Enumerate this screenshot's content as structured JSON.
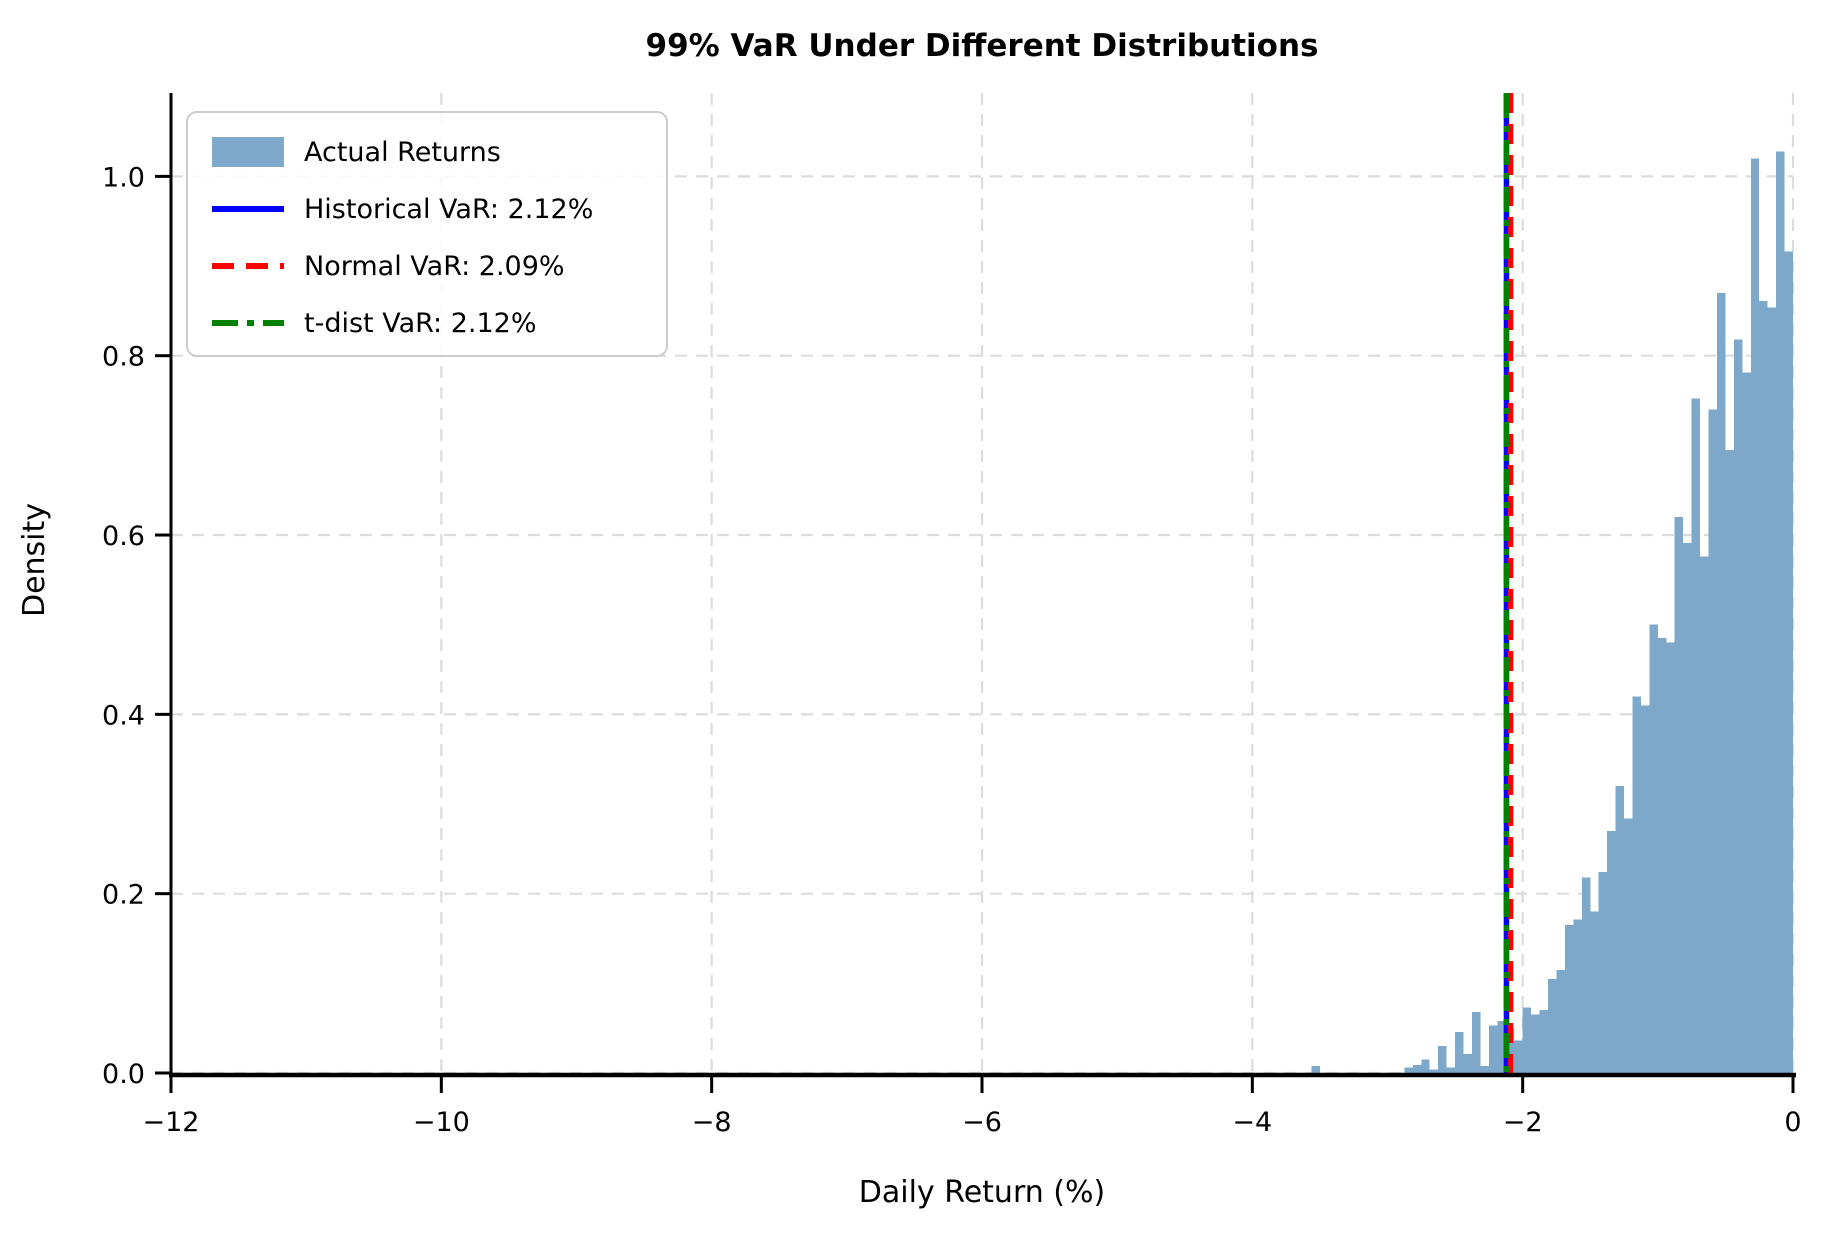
{
  "title": "99% VaR Under Different Distributions",
  "colors": {
    "histogram_fill": "#7da8ca",
    "historical_var": "#0000ff",
    "normal_var": "#ff0000",
    "tdist_var": "#008000",
    "grid": "#dcdcdc",
    "spine": "#000000",
    "legend_border": "#cccccc"
  },
  "legend": {
    "position": "upper left",
    "items": [
      {
        "label": "Actual Returns",
        "swatch": "patch",
        "color": "#7da8ca"
      },
      {
        "label": "Historical VaR: 2.12%",
        "swatch": "solid",
        "color": "#0000ff"
      },
      {
        "label": "Normal VaR: 2.09%",
        "swatch": "dashed",
        "color": "#ff0000"
      },
      {
        "label": "t-dist VaR: 2.12%",
        "swatch": "dashdot",
        "color": "#008000"
      }
    ]
  },
  "chart_data": {
    "type": "bar",
    "subtype": "histogram-density",
    "title": "99% VaR Under Different Distributions",
    "xlabel": "Daily Return (%)",
    "ylabel": "Density",
    "xlim": [
      -12,
      0
    ],
    "ylim": [
      0,
      1.093
    ],
    "grid": true,
    "x_tick_values": [
      -12,
      -10,
      -8,
      -6,
      -4,
      -2,
      0
    ],
    "x_tick_labels": [
      "−12",
      "−10",
      "−8",
      "−6",
      "−4",
      "−2",
      "0"
    ],
    "y_tick_values": [
      0.0,
      0.2,
      0.4,
      0.6,
      0.8,
      1.0
    ],
    "y_tick_labels": [
      "0.0",
      "0.2",
      "0.4",
      "0.6",
      "0.8",
      "1.0"
    ],
    "series_name": "Actual Returns",
    "bin_width": 0.0625,
    "bin_centers": [
      -3.53125,
      -3.46875,
      -3.40625,
      -3.34375,
      -3.28125,
      -3.21875,
      -3.15625,
      -3.09375,
      -3.03125,
      -2.96875,
      -2.90625,
      -2.84375,
      -2.78125,
      -2.71875,
      -2.65625,
      -2.59375,
      -2.53125,
      -2.46875,
      -2.40625,
      -2.34375,
      -2.28125,
      -2.21875,
      -2.15625,
      -2.09375,
      -2.03125,
      -1.96875,
      -1.90625,
      -1.84375,
      -1.78125,
      -1.71875,
      -1.65625,
      -1.59375,
      -1.53125,
      -1.46875,
      -1.40625,
      -1.34375,
      -1.28125,
      -1.21875,
      -1.15625,
      -1.09375,
      -1.03125,
      -0.96875,
      -0.90625,
      -0.84375,
      -0.78125,
      -0.71875,
      -0.65625,
      -0.59375,
      -0.53125,
      -0.46875,
      -0.40625,
      -0.34375,
      -0.28125,
      -0.21875,
      -0.15625,
      -0.09375,
      -0.03125
    ],
    "bin_heights": [
      0.008,
      0,
      0,
      0,
      0,
      0,
      0,
      0,
      0,
      0,
      0,
      0.006,
      0.009,
      0.015,
      0.004,
      0.03,
      0.006,
      0.046,
      0.021,
      0.068,
      0.008,
      0.053,
      0.058,
      0.05,
      0.036,
      0.073,
      0.065,
      0.07,
      0.105,
      0.115,
      0.165,
      0.171,
      0.218,
      0.18,
      0.224,
      0.27,
      0.32,
      0.284,
      0.42,
      0.41,
      0.5,
      0.485,
      0.48,
      0.62,
      0.591,
      0.752,
      0.576,
      0.74,
      0.87,
      0.695,
      0.818,
      0.781,
      1.02,
      0.861,
      0.854,
      1.028,
      0.916
    ],
    "var_lines": [
      {
        "name": "Historical VaR",
        "value_label": "2.12%",
        "x": -2.12,
        "color": "#0000ff",
        "style": "solid",
        "z": 1
      },
      {
        "name": "Normal VaR",
        "value_label": "2.09%",
        "x": -2.09,
        "color": "#ff0000",
        "style": "dashed",
        "z": 2
      },
      {
        "name": "t-dist VaR",
        "value_label": "2.12%",
        "x": -2.12,
        "color": "#008000",
        "style": "dashdot",
        "z": 3
      }
    ],
    "legend_position": "upper left"
  }
}
